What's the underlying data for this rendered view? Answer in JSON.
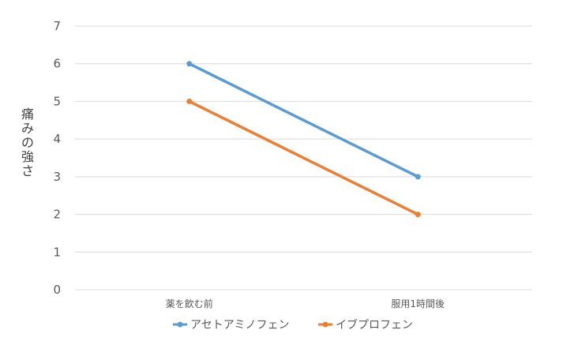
{
  "chart_data": {
    "type": "line",
    "title": "",
    "xlabel": "",
    "ylabel": "痛みの強さ",
    "categories": [
      "薬を飲む前",
      "服用1時間後"
    ],
    "series": [
      {
        "name": "アセトアミノフェン",
        "color": "#5B9BD5",
        "values": [
          6,
          3
        ]
      },
      {
        "name": "イブプロフェン",
        "color": "#ED7D31",
        "values": [
          5,
          2
        ]
      }
    ],
    "ylim": [
      0,
      7
    ],
    "yticks": [
      "0",
      "1",
      "2",
      "3",
      "4",
      "5",
      "6",
      "7"
    ],
    "grid": true,
    "gridline_color": "#D9D9D9",
    "legend_position": "bottom"
  }
}
